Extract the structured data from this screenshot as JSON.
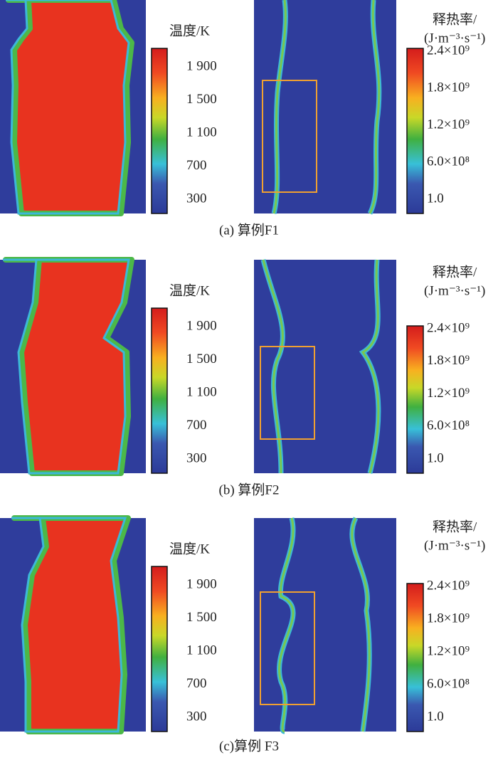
{
  "panels": [
    {
      "temperature_title": "温度/K",
      "temperature_ticks": [
        "1 900",
        "1 500",
        "1 100",
        "700",
        "300"
      ],
      "heat_title": "释热率/",
      "heat_unit": "(J·m⁻³·s⁻¹)",
      "heat_ticks": [
        "2.4×10⁹",
        "1.8×10⁹",
        "1.2×10⁹",
        "6.0×10⁸",
        "1.0"
      ],
      "caption": "(a) 算例F1"
    },
    {
      "temperature_title": "温度/K",
      "temperature_ticks": [
        "1 900",
        "1 500",
        "1 100",
        "700",
        "300"
      ],
      "heat_title": "释热率/",
      "heat_unit": "(J·m⁻³·s⁻¹)",
      "heat_ticks": [
        "2.4×10⁹",
        "1.8×10⁹",
        "1.2×10⁹",
        "6.0×10⁸",
        "1.0"
      ],
      "caption": "(b) 算例F2"
    },
    {
      "temperature_title": "温度/K",
      "temperature_ticks": [
        "1 900",
        "1 500",
        "1 100",
        "700",
        "300"
      ],
      "heat_title": "释热率/",
      "heat_unit": "(J·m⁻³·s⁻¹)",
      "heat_ticks": [
        "2.4×10⁹",
        "1.8×10⁹",
        "1.2×10⁹",
        "6.0×10⁸",
        "1.0"
      ],
      "caption": "(c)算例 F3"
    }
  ]
}
